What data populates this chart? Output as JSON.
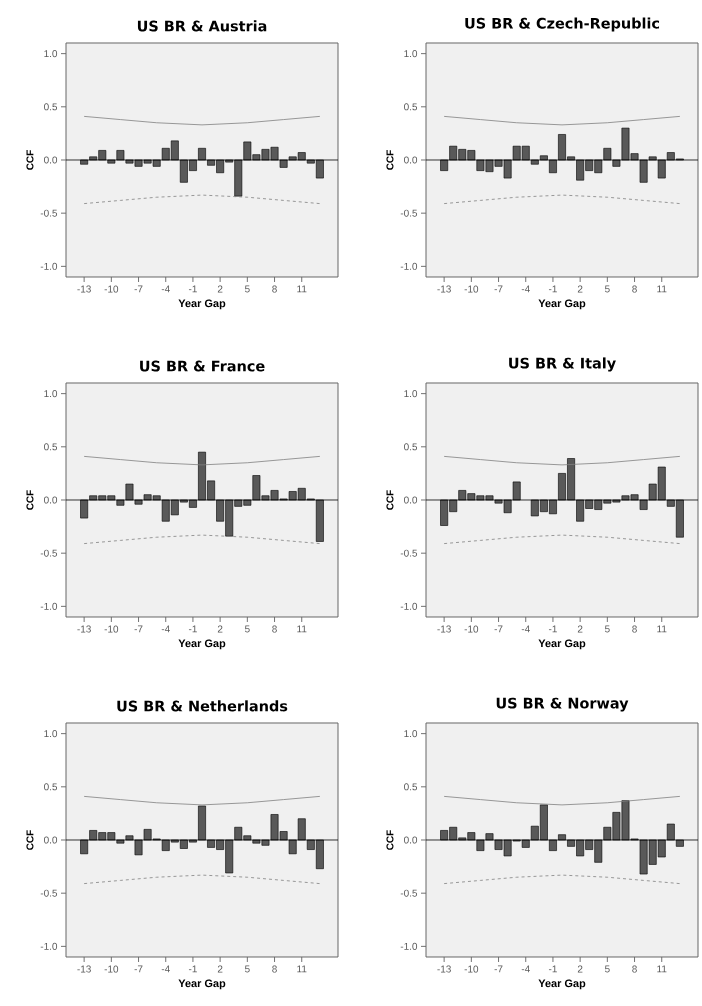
{
  "chart_data": [
    {
      "type": "bar",
      "title": "US BR & Austria",
      "xlabel": "Year Gap",
      "ylabel": "CCF",
      "x": [
        -13,
        -12,
        -11,
        -10,
        -9,
        -8,
        -7,
        -6,
        -5,
        -4,
        -3,
        -2,
        -1,
        0,
        1,
        2,
        3,
        4,
        5,
        6,
        7,
        8,
        9,
        10,
        11,
        12,
        13
      ],
      "xlim": [
        -15,
        15
      ],
      "ylim": [
        -1.1,
        1.1
      ],
      "xticks": [
        -13,
        -10,
        -7,
        -4,
        -1,
        2,
        5,
        8,
        11
      ],
      "yticks": [
        {
          "value": -1,
          "label": "-1.0"
        },
        {
          "value": -0.5,
          "label": "-0.5"
        },
        {
          "value": 0,
          "label": "0.0"
        },
        {
          "value": 0.5,
          "label": "0.5"
        },
        {
          "value": 1,
          "label": "1.0"
        }
      ],
      "ref_lines": [
        {
          "axis": "y",
          "value": 0,
          "color": "#000000"
        }
      ],
      "series": [
        {
          "type": "bar",
          "color": "#595959",
          "values": [
            -0.04,
            0.03,
            0.09,
            -0.03,
            0.09,
            -0.03,
            -0.06,
            -0.03,
            -0.06,
            0.11,
            0.18,
            -0.21,
            -0.1,
            0.11,
            -0.05,
            -0.12,
            -0.02,
            -0.34,
            0.17,
            0.05,
            0.1,
            0.12,
            -0.07,
            0.03,
            0.07,
            -0.03,
            -0.17
          ]
        },
        {
          "type": "line",
          "color": "#808080",
          "line_style": "solid",
          "x": [
            -13,
            -9,
            -5,
            0,
            5,
            9,
            13
          ],
          "values": [
            0.41,
            0.38,
            0.35,
            0.33,
            0.35,
            0.38,
            0.41
          ]
        },
        {
          "type": "line",
          "color": "#808080",
          "line_style": "dashed",
          "x": [
            -13,
            -9,
            -5,
            0,
            5,
            9,
            13
          ],
          "values": [
            -0.41,
            -0.38,
            -0.35,
            -0.33,
            -0.35,
            -0.38,
            -0.41
          ]
        }
      ]
    },
    {
      "type": "bar",
      "title": "US BR & Czech-Republic",
      "xlabel": "Year Gap",
      "ylabel": "CCF",
      "x": [
        -13,
        -12,
        -11,
        -10,
        -9,
        -8,
        -7,
        -6,
        -5,
        -4,
        -3,
        -2,
        -1,
        0,
        1,
        2,
        3,
        4,
        5,
        6,
        7,
        8,
        9,
        10,
        11,
        12,
        13
      ],
      "xlim": [
        -15,
        15
      ],
      "ylim": [
        -1.1,
        1.1
      ],
      "xticks": [
        -13,
        -10,
        -7,
        -4,
        -1,
        2,
        5,
        8,
        11
      ],
      "yticks": [
        {
          "value": -1,
          "label": "-1.0"
        },
        {
          "value": -0.5,
          "label": "-0.5"
        },
        {
          "value": 0,
          "label": "0.0"
        },
        {
          "value": 0.5,
          "label": "0.5"
        },
        {
          "value": 1,
          "label": "1.0"
        }
      ],
      "ref_lines": [
        {
          "axis": "y",
          "value": 0,
          "color": "#000000"
        }
      ],
      "series": [
        {
          "type": "bar",
          "color": "#595959",
          "values": [
            -0.1,
            0.13,
            0.1,
            0.09,
            -0.1,
            -0.11,
            -0.06,
            -0.17,
            0.13,
            0.13,
            -0.04,
            0.04,
            -0.12,
            0.24,
            0.03,
            -0.19,
            -0.1,
            -0.12,
            0.11,
            -0.06,
            0.3,
            0.06,
            -0.21,
            0.03,
            -0.17,
            0.07,
            0.01
          ]
        },
        {
          "type": "line",
          "color": "#808080",
          "line_style": "solid",
          "x": [
            -13,
            -9,
            -5,
            0,
            5,
            9,
            13
          ],
          "values": [
            0.41,
            0.38,
            0.35,
            0.33,
            0.35,
            0.38,
            0.41
          ]
        },
        {
          "type": "line",
          "color": "#808080",
          "line_style": "dashed",
          "x": [
            -13,
            -9,
            -5,
            0,
            5,
            9,
            13
          ],
          "values": [
            -0.41,
            -0.38,
            -0.35,
            -0.33,
            -0.35,
            -0.38,
            -0.41
          ]
        }
      ]
    },
    {
      "type": "bar",
      "title": "US BR & France",
      "xlabel": "Year Gap",
      "ylabel": "CCF",
      "x": [
        -13,
        -12,
        -11,
        -10,
        -9,
        -8,
        -7,
        -6,
        -5,
        -4,
        -3,
        -2,
        -1,
        0,
        1,
        2,
        3,
        4,
        5,
        6,
        7,
        8,
        9,
        10,
        11,
        12,
        13
      ],
      "xlim": [
        -15,
        15
      ],
      "ylim": [
        -1.1,
        1.1
      ],
      "xticks": [
        -13,
        -10,
        -7,
        -4,
        -1,
        2,
        5,
        8,
        11
      ],
      "yticks": [
        {
          "value": -1,
          "label": "-1.0"
        },
        {
          "value": -0.5,
          "label": "-0.5"
        },
        {
          "value": 0,
          "label": "0.0"
        },
        {
          "value": 0.5,
          "label": "0.5"
        },
        {
          "value": 1,
          "label": "1.0"
        }
      ],
      "ref_lines": [
        {
          "axis": "y",
          "value": 0,
          "color": "#000000"
        }
      ],
      "series": [
        {
          "type": "bar",
          "color": "#595959",
          "values": [
            -0.17,
            0.04,
            0.04,
            0.04,
            -0.05,
            0.15,
            -0.04,
            0.05,
            0.04,
            -0.2,
            -0.14,
            -0.02,
            -0.07,
            0.45,
            0.18,
            -0.2,
            -0.34,
            -0.06,
            -0.05,
            0.23,
            0.04,
            0.09,
            0.01,
            0.08,
            0.11,
            0.01,
            -0.39
          ]
        },
        {
          "type": "line",
          "color": "#808080",
          "line_style": "solid",
          "x": [
            -13,
            -9,
            -5,
            0,
            5,
            9,
            13
          ],
          "values": [
            0.41,
            0.38,
            0.35,
            0.33,
            0.35,
            0.38,
            0.41
          ]
        },
        {
          "type": "line",
          "color": "#808080",
          "line_style": "dashed",
          "x": [
            -13,
            -9,
            -5,
            0,
            5,
            9,
            13
          ],
          "values": [
            -0.41,
            -0.38,
            -0.35,
            -0.33,
            -0.35,
            -0.38,
            -0.41
          ]
        }
      ]
    },
    {
      "type": "bar",
      "title": "US BR & Italy",
      "xlabel": "Year Gap",
      "ylabel": "CCF",
      "x": [
        -13,
        -12,
        -11,
        -10,
        -9,
        -8,
        -7,
        -6,
        -5,
        -4,
        -3,
        -2,
        -1,
        0,
        1,
        2,
        3,
        4,
        5,
        6,
        7,
        8,
        9,
        10,
        11,
        12,
        13
      ],
      "xlim": [
        -15,
        15
      ],
      "ylim": [
        -1.1,
        1.1
      ],
      "xticks": [
        -13,
        -10,
        -7,
        -4,
        -1,
        2,
        5,
        8,
        11
      ],
      "yticks": [
        {
          "value": -1,
          "label": "-1.0"
        },
        {
          "value": -0.5,
          "label": "-0.5"
        },
        {
          "value": 0,
          "label": "0.0"
        },
        {
          "value": 0.5,
          "label": "0.5"
        },
        {
          "value": 1,
          "label": "1.0"
        }
      ],
      "ref_lines": [
        {
          "axis": "y",
          "value": 0,
          "color": "#000000"
        }
      ],
      "series": [
        {
          "type": "bar",
          "color": "#595959",
          "values": [
            -0.24,
            -0.11,
            0.09,
            0.06,
            0.04,
            0.04,
            -0.03,
            -0.12,
            0.17,
            null,
            -0.15,
            -0.11,
            -0.13,
            0.25,
            0.39,
            -0.2,
            -0.08,
            -0.09,
            -0.03,
            -0.02,
            0.04,
            0.05,
            -0.09,
            0.15,
            0.31,
            -0.06,
            -0.35
          ]
        },
        {
          "type": "line",
          "color": "#808080",
          "line_style": "solid",
          "x": [
            -13,
            -9,
            -5,
            0,
            5,
            9,
            13
          ],
          "values": [
            0.41,
            0.38,
            0.35,
            0.33,
            0.35,
            0.38,
            0.41
          ]
        },
        {
          "type": "line",
          "color": "#808080",
          "line_style": "dashed",
          "x": [
            -13,
            -9,
            -5,
            0,
            5,
            9,
            13
          ],
          "values": [
            -0.41,
            -0.38,
            -0.35,
            -0.33,
            -0.35,
            -0.38,
            -0.41
          ]
        }
      ]
    },
    {
      "type": "bar",
      "title": "US BR & Netherlands",
      "xlabel": "Year Gap",
      "ylabel": "CCF",
      "x": [
        -13,
        -12,
        -11,
        -10,
        -9,
        -8,
        -7,
        -6,
        -5,
        -4,
        -3,
        -2,
        -1,
        0,
        1,
        2,
        3,
        4,
        5,
        6,
        7,
        8,
        9,
        10,
        11,
        12,
        13
      ],
      "xlim": [
        -15,
        15
      ],
      "ylim": [
        -1.1,
        1.1
      ],
      "xticks": [
        -13,
        -10,
        -7,
        -4,
        -1,
        2,
        5,
        8,
        11
      ],
      "yticks": [
        {
          "value": -1,
          "label": "-1.0"
        },
        {
          "value": -0.5,
          "label": "-0.5"
        },
        {
          "value": 0,
          "label": "0.0"
        },
        {
          "value": 0.5,
          "label": "0.5"
        },
        {
          "value": 1,
          "label": "1.0"
        }
      ],
      "ref_lines": [
        {
          "axis": "y",
          "value": 0,
          "color": "#000000"
        }
      ],
      "series": [
        {
          "type": "bar",
          "color": "#595959",
          "values": [
            -0.13,
            0.09,
            0.07,
            0.07,
            -0.03,
            0.04,
            -0.14,
            0.1,
            0.01,
            -0.1,
            -0.02,
            -0.08,
            -0.02,
            0.32,
            -0.07,
            -0.09,
            -0.31,
            0.12,
            0.04,
            -0.03,
            -0.05,
            0.24,
            0.08,
            -0.13,
            0.2,
            -0.09,
            -0.27
          ]
        },
        {
          "type": "line",
          "color": "#808080",
          "line_style": "solid",
          "x": [
            -13,
            -9,
            -5,
            0,
            5,
            9,
            13
          ],
          "values": [
            0.41,
            0.38,
            0.35,
            0.33,
            0.35,
            0.38,
            0.41
          ]
        },
        {
          "type": "line",
          "color": "#808080",
          "line_style": "dashed",
          "x": [
            -13,
            -9,
            -5,
            0,
            5,
            9,
            13
          ],
          "values": [
            -0.41,
            -0.38,
            -0.35,
            -0.33,
            -0.35,
            -0.38,
            -0.41
          ]
        }
      ]
    },
    {
      "type": "bar",
      "title": "US BR & Norway",
      "xlabel": "Year Gap",
      "ylabel": "CCF",
      "x": [
        -13,
        -12,
        -11,
        -10,
        -9,
        -8,
        -7,
        -6,
        -5,
        -4,
        -3,
        -2,
        -1,
        0,
        1,
        2,
        3,
        4,
        5,
        6,
        7,
        8,
        9,
        10,
        11,
        12,
        13
      ],
      "xlim": [
        -15,
        15
      ],
      "ylim": [
        -1.1,
        1.1
      ],
      "xticks": [
        -13,
        -10,
        -7,
        -4,
        -1,
        2,
        5,
        8,
        11
      ],
      "yticks": [
        {
          "value": -1,
          "label": "-1.0"
        },
        {
          "value": -0.5,
          "label": "-0.5"
        },
        {
          "value": 0,
          "label": "0.0"
        },
        {
          "value": 0.5,
          "label": "0.5"
        },
        {
          "value": 1,
          "label": "1.0"
        }
      ],
      "ref_lines": [
        {
          "axis": "y",
          "value": 0,
          "color": "#000000"
        }
      ],
      "series": [
        {
          "type": "bar",
          "color": "#595959",
          "values": [
            0.09,
            0.12,
            0.02,
            0.07,
            -0.1,
            0.06,
            -0.09,
            -0.15,
            -0.01,
            -0.07,
            0.13,
            0.33,
            -0.1,
            0.05,
            -0.06,
            -0.15,
            -0.09,
            -0.21,
            0.12,
            0.26,
            0.37,
            0.01,
            -0.32,
            -0.23,
            -0.16,
            0.15,
            -0.06
          ]
        },
        {
          "type": "line",
          "color": "#808080",
          "line_style": "solid",
          "x": [
            -13,
            -9,
            -5,
            0,
            5,
            9,
            13
          ],
          "values": [
            0.41,
            0.38,
            0.35,
            0.33,
            0.35,
            0.38,
            0.41
          ]
        },
        {
          "type": "line",
          "color": "#808080",
          "line_style": "dashed",
          "x": [
            -13,
            -9,
            -5,
            0,
            5,
            9,
            13
          ],
          "values": [
            -0.41,
            -0.38,
            -0.35,
            -0.33,
            -0.35,
            -0.38,
            -0.41
          ]
        }
      ]
    }
  ]
}
